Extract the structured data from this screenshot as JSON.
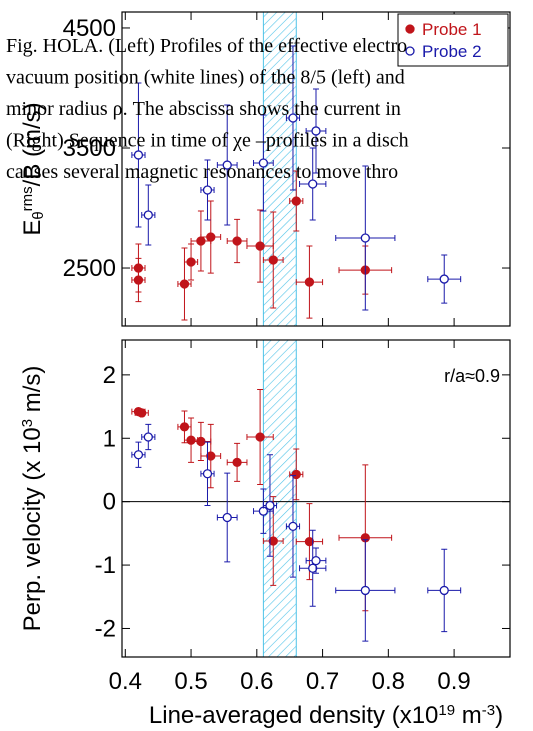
{
  "chart_data": [
    {
      "type": "scatter",
      "ylabel_parts": [
        "E",
        "θ",
        "rms",
        "/B (m/s)"
      ],
      "xlim": [
        0.395,
        0.985
      ],
      "xticks": [
        0.4,
        0.5,
        0.6,
        0.7,
        0.8,
        0.9
      ],
      "xtick_labels": false,
      "ylim": [
        2017,
        4633
      ],
      "yticks": [
        2500,
        3500,
        4500
      ],
      "band": [
        0.61,
        0.66
      ],
      "legend": "upper right",
      "series": [
        {
          "name": "Probe 1",
          "color": "#c0141a",
          "marker": "filled",
          "x": [
            0.42,
            0.42,
            0.5,
            0.49,
            0.515,
            0.53,
            0.57,
            0.605,
            0.625,
            0.66,
            0.68,
            0.765
          ],
          "xerr": [
            0.01,
            0.01,
            0.01,
            0.01,
            0.015,
            0.015,
            0.015,
            0.02,
            0.015,
            0.01,
            0.02,
            0.04
          ],
          "values": [
            2500,
            2400,
            2550,
            2367,
            2725,
            2758,
            2725,
            2683,
            2567,
            3058,
            2383,
            2483
          ],
          "yerr": [
            200,
            180,
            150,
            300,
            250,
            300,
            180,
            300,
            400,
            250,
            300,
            200
          ]
        },
        {
          "name": "Probe 2",
          "color": "#1a1aaa",
          "marker": "open",
          "x": [
            0.42,
            0.435,
            0.525,
            0.555,
            0.61,
            0.655,
            0.69,
            0.685,
            0.765,
            0.885
          ],
          "xerr": [
            0.01,
            0.01,
            0.01,
            0.015,
            0.015,
            0.01,
            0.015,
            0.02,
            0.045,
            0.025
          ],
          "values": [
            3442,
            2942,
            3150,
            3358,
            3375,
            3750,
            3642,
            3200,
            2750,
            2408
          ],
          "yerr": [
            600,
            250,
            250,
            500,
            400,
            600,
            350,
            300,
            600,
            200
          ]
        }
      ]
    },
    {
      "type": "scatter",
      "ylabel_parts": [
        "Perp. velocity (x 10",
        "3",
        " m/s)"
      ],
      "xlabel_parts": [
        "Line-averaged density (x10",
        "19",
        " m",
        "-3",
        ")"
      ],
      "annotation": "r/a≈0.9",
      "xlim": [
        0.395,
        0.985
      ],
      "xticks": [
        0.4,
        0.5,
        0.6,
        0.7,
        0.8,
        0.9
      ],
      "xtick_labels": true,
      "ylim": [
        -2.45,
        2.55
      ],
      "yticks": [
        -2,
        -1,
        0,
        1,
        2
      ],
      "band": [
        0.61,
        0.66
      ],
      "hline": 0,
      "series": [
        {
          "color": "#c0141a",
          "marker": "filled",
          "x": [
            0.42,
            0.425,
            0.49,
            0.5,
            0.515,
            0.53,
            0.57,
            0.605,
            0.625,
            0.66,
            0.68,
            0.765
          ],
          "xerr": [
            0.01,
            0.01,
            0.01,
            0.01,
            0.015,
            0.015,
            0.015,
            0.02,
            0.015,
            0.01,
            0.02,
            0.04
          ],
          "values": [
            1.42,
            1.4,
            1.18,
            0.97,
            0.95,
            0.72,
            0.62,
            1.02,
            -0.62,
            0.43,
            -0.63,
            -0.57
          ],
          "yerr": [
            0.05,
            0.05,
            0.25,
            0.35,
            0.3,
            0.5,
            0.3,
            0.75,
            0.7,
            0.4,
            0.6,
            1.15
          ]
        },
        {
          "color": "#1a1aaa",
          "marker": "open",
          "x": [
            0.42,
            0.435,
            0.525,
            0.555,
            0.61,
            0.62,
            0.655,
            0.685,
            0.69,
            0.765,
            0.885
          ],
          "xerr": [
            0.01,
            0.01,
            0.01,
            0.015,
            0.015,
            0.01,
            0.01,
            0.02,
            0.015,
            0.045,
            0.025
          ],
          "values": [
            0.74,
            1.02,
            0.44,
            -0.25,
            -0.15,
            -0.06,
            -0.39,
            -1.05,
            -0.93,
            -1.4,
            -1.4
          ],
          "yerr": [
            0.2,
            0.2,
            0.5,
            0.7,
            0.35,
            0.8,
            0.8,
            0.6,
            0.2,
            0.8,
            0.65
          ]
        }
      ]
    }
  ],
  "overlay_text": [
    "Fig. HOLA. (Left) Profiles of the effective electro",
    "vacuum position (white lines) of the 8/5 (left) and",
    "minor radius ρ. The abscissa shows the current in",
    "(Right) Sequence in time of χe –profiles in a disch",
    "causes several magnetic resonances to move thro"
  ]
}
